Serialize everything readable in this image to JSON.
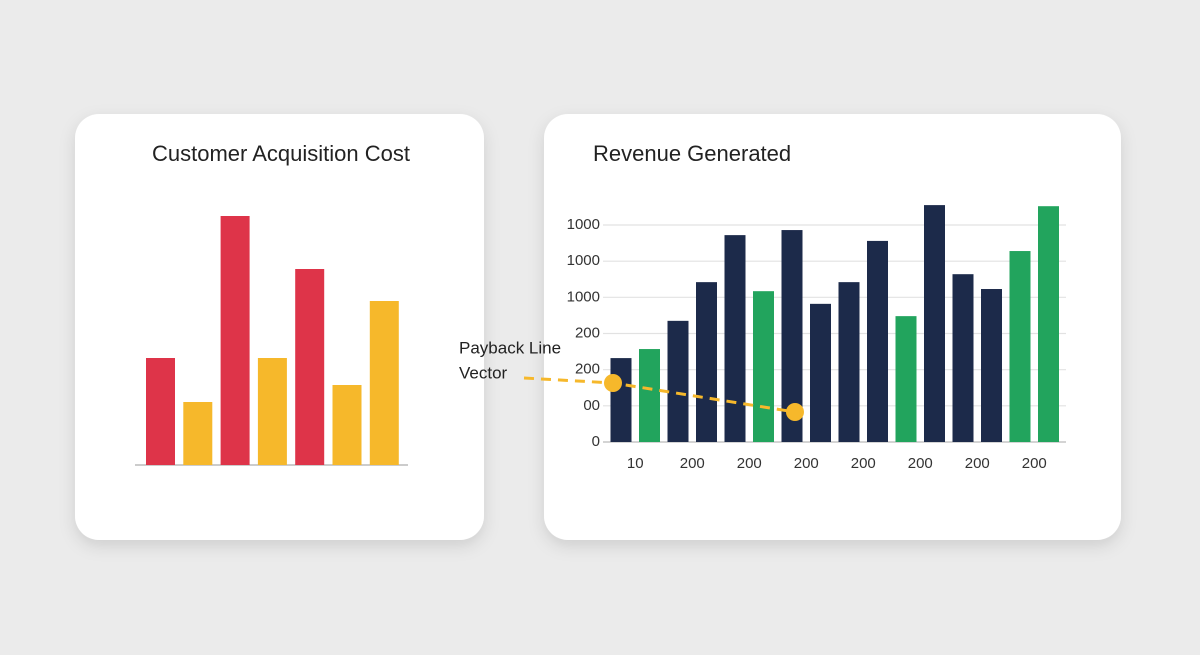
{
  "chart_data": [
    {
      "type": "bar",
      "title": "Customer Acquisition Cost",
      "values": [
        107,
        63,
        249,
        107,
        196,
        80,
        164
      ],
      "colors": [
        "#de3449",
        "#f6b82b",
        "#de3449",
        "#f6b82b",
        "#de3449",
        "#f6b82b",
        "#f6b82b"
      ]
    },
    {
      "type": "bar",
      "title": "Revenue Generated",
      "categories": [
        "10",
        null,
        "200",
        null,
        "200",
        null,
        "200",
        null,
        "200",
        null,
        "200",
        null,
        "200",
        null,
        "200",
        null
      ],
      "values": [
        2.32,
        2.57,
        3.35,
        4.42,
        5.72,
        4.17,
        5.86,
        3.82,
        4.42,
        5.56,
        3.48,
        6.55,
        4.64,
        4.23,
        5.28,
        6.52
      ],
      "colors": [
        "#1c2a4a",
        "#22a45d",
        "#1c2a4a",
        "#1c2a4a",
        "#1c2a4a",
        "#22a45d",
        "#1c2a4a",
        "#1c2a4a",
        "#1c2a4a",
        "#1c2a4a",
        "#22a45d",
        "#1c2a4a",
        "#1c2a4a",
        "#1c2a4a",
        "#22a45d",
        "#22a45d"
      ],
      "ylim": [
        0,
        6.6
      ],
      "yticks": [
        0,
        {
          "value": 1,
          "label": "00"
        },
        {
          "value": 2,
          "label": "200"
        },
        {
          "value": 3,
          "label": "200"
        },
        {
          "value": 4,
          "label": "1000"
        },
        {
          "value": 5,
          "label": "1000"
        },
        {
          "value": 6,
          "label": "1000"
        }
      ],
      "grid": true,
      "annotations": [
        "Payback Line",
        "Vector"
      ]
    }
  ]
}
